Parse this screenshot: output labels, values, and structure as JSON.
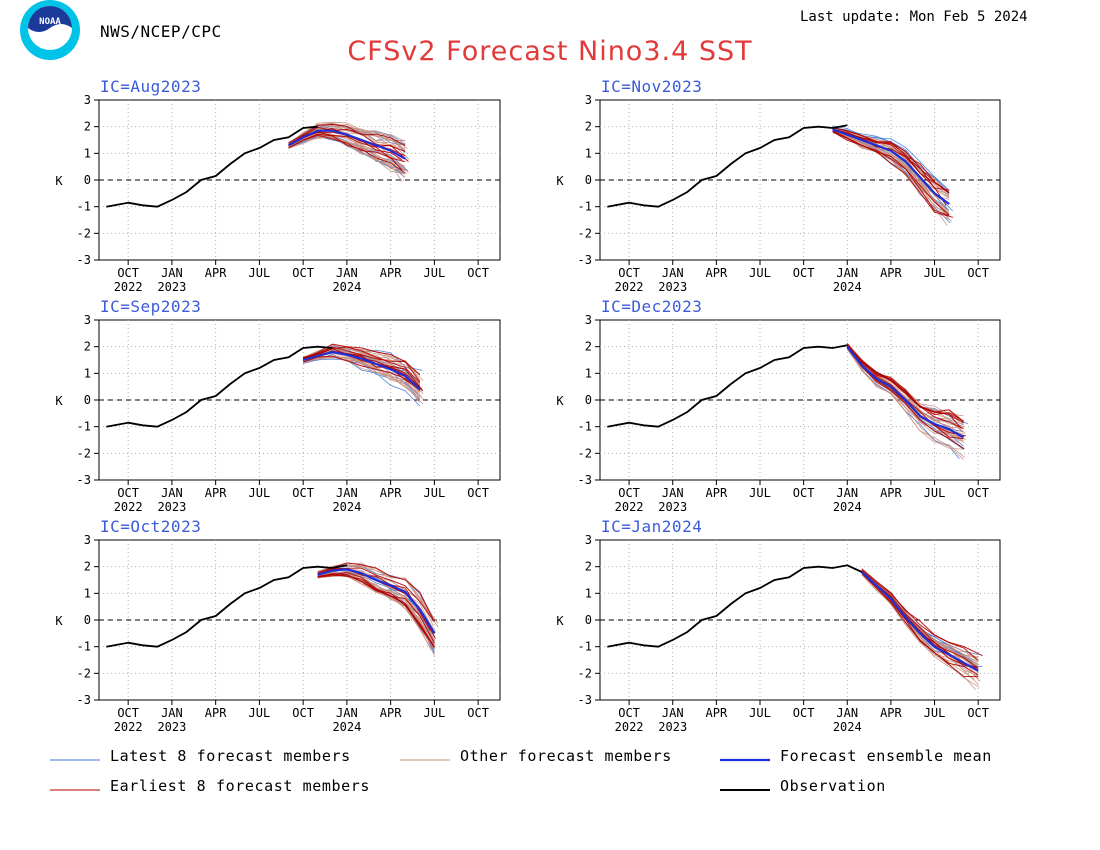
{
  "header": {
    "org": "NWS/NCEP/CPC",
    "last_update": "Last update: Mon Feb 5 2024",
    "title": "CFSv2 Forecast Nino3.4 SST",
    "logo_text": "NOAA"
  },
  "colors": {
    "title": "#e23a3a",
    "ic_label": "#3b5bdb",
    "latest": "#3c78d8",
    "other": "#c89080",
    "earliest": "#b00000",
    "mean": "#1c2fd8",
    "observation": "#000000"
  },
  "legend": [
    {
      "key": "latest",
      "label": "Latest 8 forecast members"
    },
    {
      "key": "other",
      "label": "Other forecast members"
    },
    {
      "key": "mean",
      "label": "Forecast ensemble mean"
    },
    {
      "key": "earliest",
      "label": "Earliest 8 forecast members"
    },
    {
      "key": "observation",
      "label": "Observation"
    }
  ],
  "chart_data": [
    {
      "type": "line",
      "title": "IC=Aug2023",
      "ylabel": "K",
      "ylim": [
        -3,
        3
      ],
      "grid": true,
      "x_ticks": [
        {
          "m": 0,
          "l1": "OCT",
          "l2": "2022"
        },
        {
          "m": 3,
          "l1": "JAN",
          "l2": "2023"
        },
        {
          "m": 6,
          "l1": "APR"
        },
        {
          "m": 9,
          "l1": "JUL"
        },
        {
          "m": 12,
          "l1": "OCT"
        },
        {
          "m": 15,
          "l1": "JAN",
          "l2": "2024"
        },
        {
          "m": 18,
          "l1": "APR"
        },
        {
          "m": 21,
          "l1": "JUL"
        },
        {
          "m": 24,
          "l1": "OCT"
        }
      ],
      "y_ticks": [
        3,
        2,
        1,
        0,
        -1,
        -2,
        -3
      ],
      "observation": {
        "x": [
          -1.5,
          0,
          1,
          2,
          3,
          4,
          5,
          6,
          7,
          8,
          9,
          10,
          11,
          12,
          13
        ],
        "y": [
          -1.0,
          -0.85,
          -0.95,
          -1.0,
          -0.75,
          -0.45,
          0.0,
          0.15,
          0.6,
          1.0,
          1.2,
          1.5,
          1.6,
          1.95,
          2.0
        ]
      },
      "ensemble_mean": {
        "x": [
          11,
          12,
          13,
          14,
          15,
          16,
          17,
          18,
          19
        ],
        "y": [
          1.3,
          1.6,
          1.85,
          1.85,
          1.7,
          1.5,
          1.3,
          1.1,
          0.8
        ]
      },
      "spread": [
        0.6,
        0.4
      ]
    },
    {
      "type": "line",
      "title": "IC=Nov2023",
      "ylabel": "K",
      "ylim": [
        -3,
        3
      ],
      "grid": true,
      "x_ticks": [
        {
          "m": 0,
          "l1": "OCT",
          "l2": "2022"
        },
        {
          "m": 3,
          "l1": "JAN",
          "l2": "2023"
        },
        {
          "m": 6,
          "l1": "APR"
        },
        {
          "m": 9,
          "l1": "JUL"
        },
        {
          "m": 12,
          "l1": "OCT"
        },
        {
          "m": 15,
          "l1": "JAN",
          "l2": "2024"
        },
        {
          "m": 18,
          "l1": "APR"
        },
        {
          "m": 21,
          "l1": "JUL"
        },
        {
          "m": 24,
          "l1": "OCT"
        }
      ],
      "y_ticks": [
        3,
        2,
        1,
        0,
        -1,
        -2,
        -3
      ],
      "observation": {
        "x": [
          -1.5,
          0,
          1,
          2,
          3,
          4,
          5,
          6,
          7,
          8,
          9,
          10,
          11,
          12,
          13,
          14,
          15
        ],
        "y": [
          -1.0,
          -0.85,
          -0.95,
          -1.0,
          -0.75,
          -0.45,
          0.0,
          0.15,
          0.6,
          1.0,
          1.2,
          1.5,
          1.6,
          1.95,
          2.0,
          1.95,
          2.05
        ]
      },
      "ensemble_mean": {
        "x": [
          14,
          15,
          16,
          17,
          18,
          19,
          20,
          21,
          22
        ],
        "y": [
          1.9,
          1.7,
          1.5,
          1.3,
          1.1,
          0.7,
          0.1,
          -0.5,
          -0.9
        ]
      },
      "spread": [
        0.6,
        0.45
      ]
    },
    {
      "type": "line",
      "title": "IC=Sep2023",
      "ylabel": "K",
      "ylim": [
        -3,
        3
      ],
      "grid": true,
      "x_ticks": [
        {
          "m": 0,
          "l1": "OCT",
          "l2": "2022"
        },
        {
          "m": 3,
          "l1": "JAN",
          "l2": "2023"
        },
        {
          "m": 6,
          "l1": "APR"
        },
        {
          "m": 9,
          "l1": "JUL"
        },
        {
          "m": 12,
          "l1": "OCT"
        },
        {
          "m": 15,
          "l1": "JAN",
          "l2": "2024"
        },
        {
          "m": 18,
          "l1": "APR"
        },
        {
          "m": 21,
          "l1": "JUL"
        },
        {
          "m": 24,
          "l1": "OCT"
        }
      ],
      "y_ticks": [
        3,
        2,
        1,
        0,
        -1,
        -2,
        -3
      ],
      "observation": {
        "x": [
          -1.5,
          0,
          1,
          2,
          3,
          4,
          5,
          6,
          7,
          8,
          9,
          10,
          11,
          12,
          13,
          14
        ],
        "y": [
          -1.0,
          -0.85,
          -0.95,
          -1.0,
          -0.75,
          -0.45,
          0.0,
          0.15,
          0.6,
          1.0,
          1.2,
          1.5,
          1.6,
          1.95,
          2.0,
          1.95
        ]
      },
      "ensemble_mean": {
        "x": [
          12,
          13,
          14,
          15,
          16,
          17,
          18,
          19,
          20
        ],
        "y": [
          1.5,
          1.65,
          1.8,
          1.7,
          1.55,
          1.35,
          1.15,
          0.9,
          0.4
        ]
      },
      "spread": [
        0.5,
        0.5
      ]
    },
    {
      "type": "line",
      "title": "IC=Dec2023",
      "ylabel": "K",
      "ylim": [
        -3,
        3
      ],
      "grid": true,
      "x_ticks": [
        {
          "m": 0,
          "l1": "OCT",
          "l2": "2022"
        },
        {
          "m": 3,
          "l1": "JAN",
          "l2": "2023"
        },
        {
          "m": 6,
          "l1": "APR"
        },
        {
          "m": 9,
          "l1": "JUL"
        },
        {
          "m": 12,
          "l1": "OCT"
        },
        {
          "m": 15,
          "l1": "JAN",
          "l2": "2024"
        },
        {
          "m": 18,
          "l1": "APR"
        },
        {
          "m": 21,
          "l1": "JUL"
        },
        {
          "m": 24,
          "l1": "OCT"
        }
      ],
      "y_ticks": [
        3,
        2,
        1,
        0,
        -1,
        -2,
        -3
      ],
      "observation": {
        "x": [
          -1.5,
          0,
          1,
          2,
          3,
          4,
          5,
          6,
          7,
          8,
          9,
          10,
          11,
          12,
          13,
          14,
          15
        ],
        "y": [
          -1.0,
          -0.85,
          -0.95,
          -1.0,
          -0.75,
          -0.45,
          0.0,
          0.15,
          0.6,
          1.0,
          1.2,
          1.5,
          1.6,
          1.95,
          2.0,
          1.95,
          2.05
        ]
      },
      "ensemble_mean": {
        "x": [
          15,
          16,
          17,
          18,
          19,
          20,
          21,
          22,
          23
        ],
        "y": [
          2.0,
          1.3,
          0.8,
          0.5,
          0.0,
          -0.6,
          -0.9,
          -1.1,
          -1.4
        ]
      },
      "spread": [
        0.6,
        0.45
      ]
    },
    {
      "type": "line",
      "title": "IC=Oct2023",
      "ylabel": "K",
      "ylim": [
        -3,
        3
      ],
      "grid": true,
      "x_ticks": [
        {
          "m": 0,
          "l1": "OCT",
          "l2": "2022"
        },
        {
          "m": 3,
          "l1": "JAN",
          "l2": "2023"
        },
        {
          "m": 6,
          "l1": "APR"
        },
        {
          "m": 9,
          "l1": "JUL"
        },
        {
          "m": 12,
          "l1": "OCT"
        },
        {
          "m": 15,
          "l1": "JAN",
          "l2": "2024"
        },
        {
          "m": 18,
          "l1": "APR"
        },
        {
          "m": 21,
          "l1": "JUL"
        },
        {
          "m": 24,
          "l1": "OCT"
        }
      ],
      "y_ticks": [
        3,
        2,
        1,
        0,
        -1,
        -2,
        -3
      ],
      "observation": {
        "x": [
          -1.5,
          0,
          1,
          2,
          3,
          4,
          5,
          6,
          7,
          8,
          9,
          10,
          11,
          12,
          13,
          14,
          15
        ],
        "y": [
          -1.0,
          -0.85,
          -0.95,
          -1.0,
          -0.75,
          -0.45,
          0.0,
          0.15,
          0.6,
          1.0,
          1.2,
          1.5,
          1.6,
          1.95,
          2.0,
          1.95,
          2.05
        ]
      },
      "ensemble_mean": {
        "x": [
          13,
          14,
          15,
          16,
          17,
          18,
          19,
          20,
          21
        ],
        "y": [
          1.7,
          1.85,
          1.9,
          1.75,
          1.5,
          1.3,
          1.05,
          0.4,
          -0.5
        ]
      },
      "spread": [
        0.6,
        0.5
      ]
    },
    {
      "type": "line",
      "title": "IC=Jan2024",
      "ylabel": "K",
      "ylim": [
        -3,
        3
      ],
      "grid": true,
      "x_ticks": [
        {
          "m": 0,
          "l1": "OCT",
          "l2": "2022"
        },
        {
          "m": 3,
          "l1": "JAN",
          "l2": "2023"
        },
        {
          "m": 6,
          "l1": "APR"
        },
        {
          "m": 9,
          "l1": "JUL"
        },
        {
          "m": 12,
          "l1": "OCT"
        },
        {
          "m": 15,
          "l1": "JAN",
          "l2": "2024"
        },
        {
          "m": 18,
          "l1": "APR"
        },
        {
          "m": 21,
          "l1": "JUL"
        },
        {
          "m": 24,
          "l1": "OCT"
        }
      ],
      "y_ticks": [
        3,
        2,
        1,
        0,
        -1,
        -2,
        -3
      ],
      "observation": {
        "x": [
          -1.5,
          0,
          1,
          2,
          3,
          4,
          5,
          6,
          7,
          8,
          9,
          10,
          11,
          12,
          13,
          14,
          15,
          16
        ],
        "y": [
          -1.0,
          -0.85,
          -0.95,
          -1.0,
          -0.75,
          -0.45,
          0.0,
          0.15,
          0.6,
          1.0,
          1.2,
          1.5,
          1.6,
          1.95,
          2.0,
          1.95,
          2.05,
          1.8
        ]
      },
      "ensemble_mean": {
        "x": [
          16,
          17,
          18,
          19,
          20,
          21,
          22,
          23,
          24
        ],
        "y": [
          1.8,
          1.3,
          0.8,
          0.1,
          -0.5,
          -1.0,
          -1.3,
          -1.6,
          -1.9
        ]
      },
      "spread": [
        0.5,
        0.5
      ]
    }
  ]
}
